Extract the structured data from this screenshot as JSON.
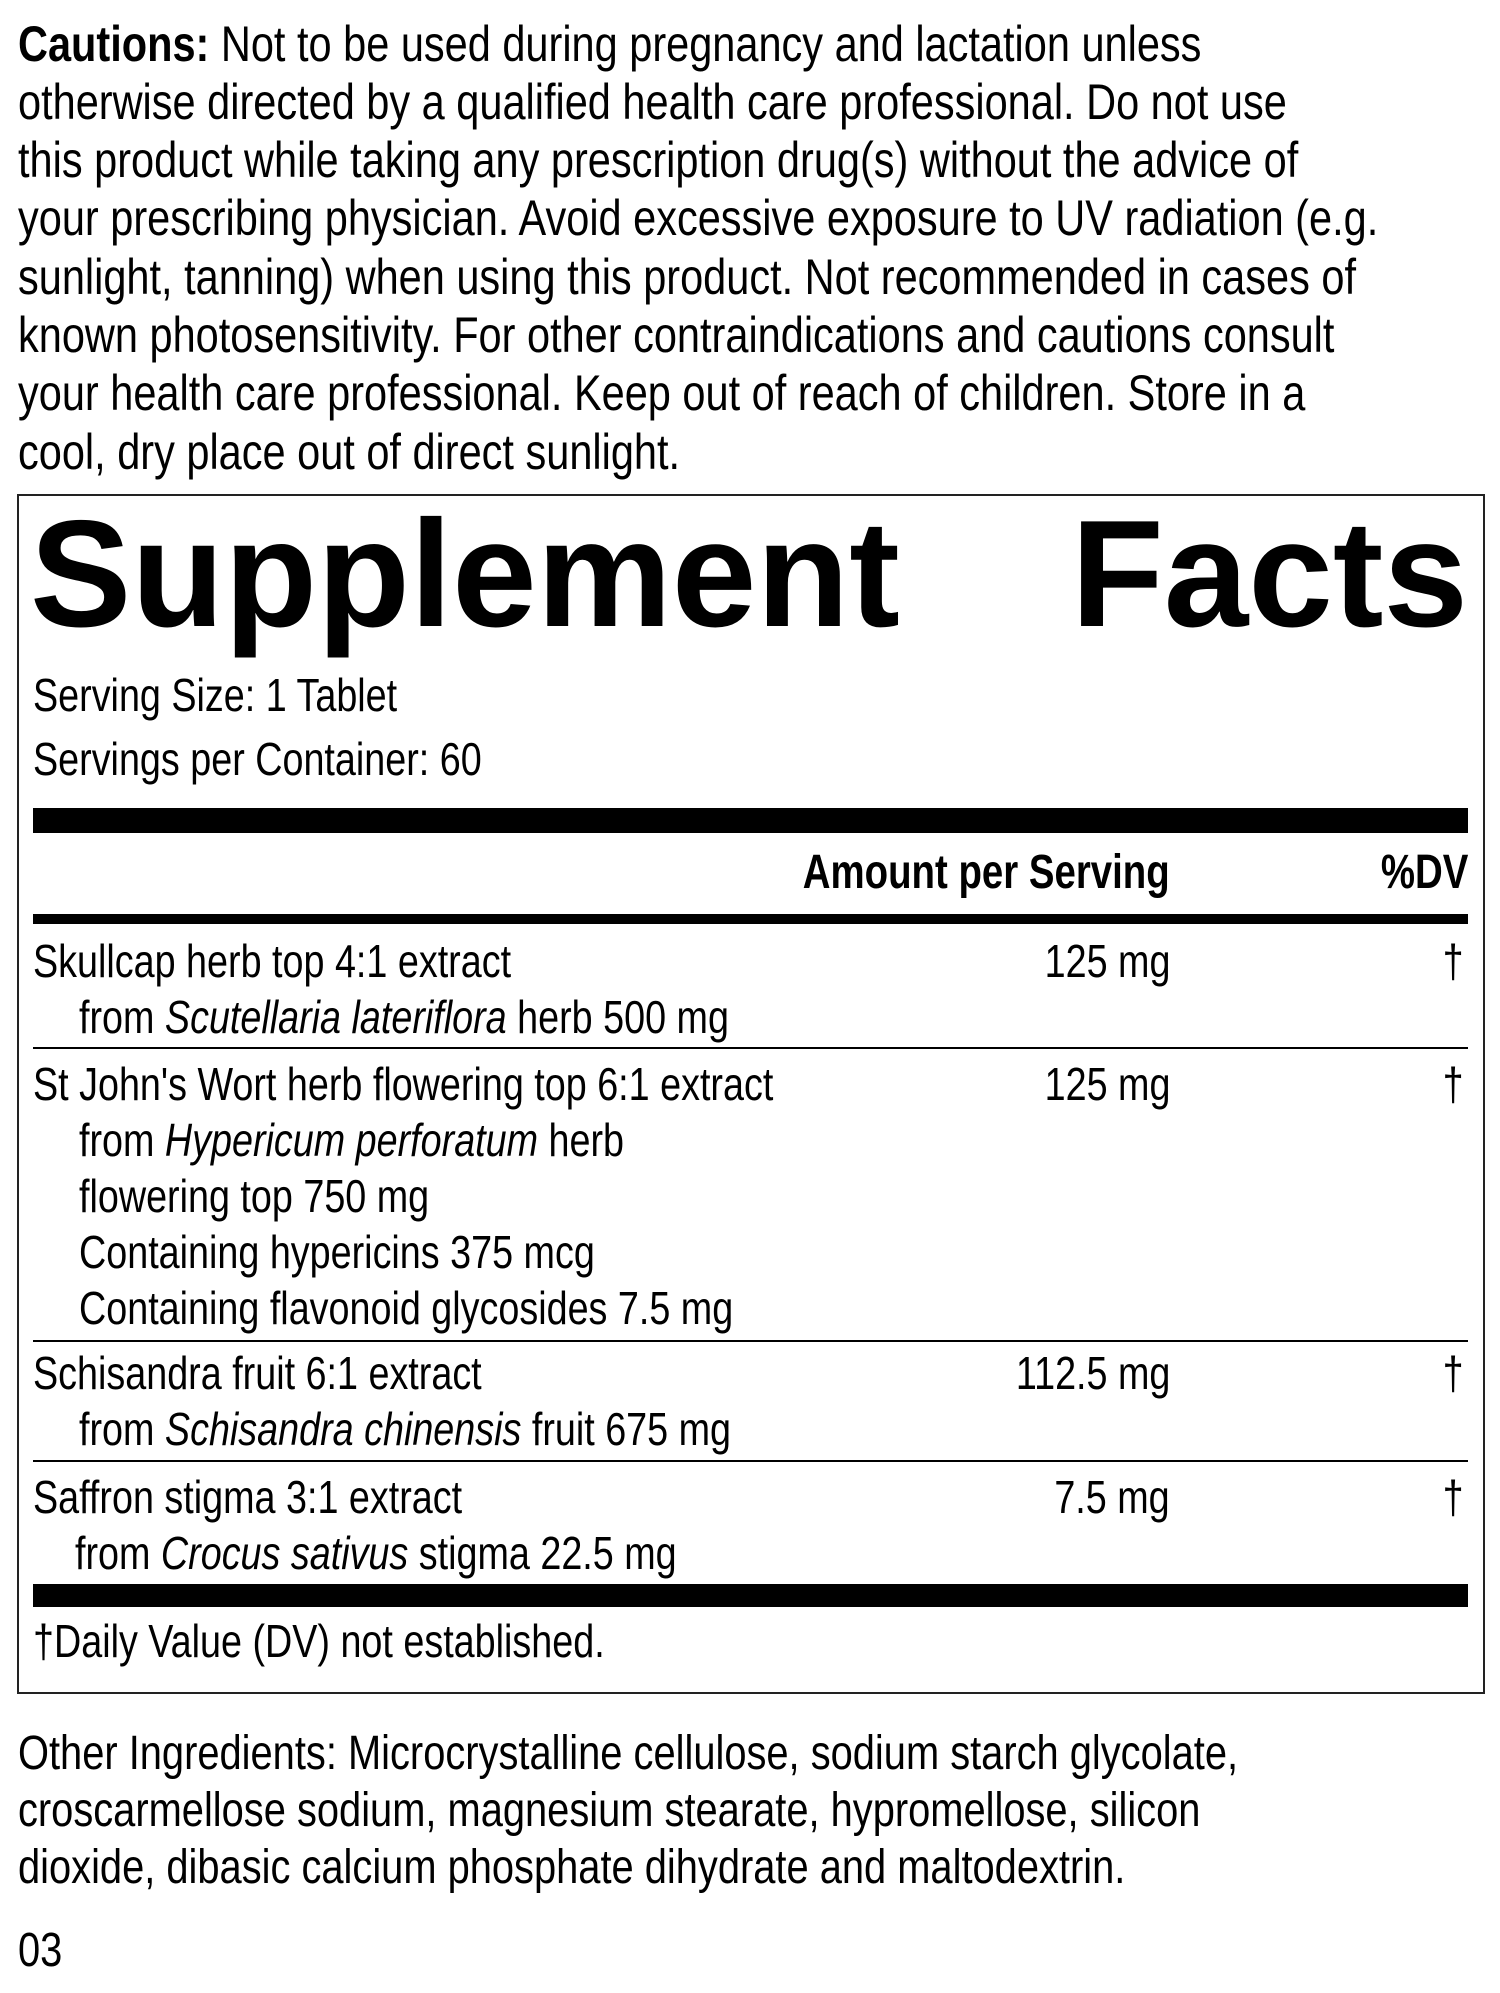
{
  "cautions": {
    "label": "Cautions:",
    "lines": [
      " Not to be used during pregnancy and lactation unless",
      "otherwise directed by a qualified health care professional. Do not use",
      "this product while taking any prescription drug(s) without the advice of",
      "your prescribing physician. Avoid excessive exposure to UV radiation (e.g.",
      "sunlight, tanning) when using this product. Not recommended in cases of",
      "known photosensitivity. For other contraindications and cautions consult",
      "your health care professional. Keep out of reach of children. Store in a",
      "cool, dry place out of direct sunlight."
    ]
  },
  "facts": {
    "title_word1": "Supplement",
    "title_word2": "Facts",
    "serving_size": "Serving Size: 1 Tablet",
    "servings_per_container": "Servings per Container: 60",
    "col_amount": "Amount per Serving",
    "col_dv": "%DV",
    "rows": [
      {
        "name": "Skullcap herb top 4:1 extract",
        "amount": "125 mg",
        "dv": "†",
        "sub": [
          {
            "pre": "from ",
            "ital": "Scutellaria lateriflora",
            "post": " herb 500 mg"
          }
        ]
      },
      {
        "name": "St John's Wort herb flowering top 6:1 extract",
        "amount": "125 mg",
        "dv": "†",
        "sub": [
          {
            "pre": "from ",
            "ital": "Hypericum perforatum",
            "post": " herb"
          },
          {
            "pre": "flowering top 750 mg"
          },
          {
            "pre": "Containing hypericins 375 mcg"
          },
          {
            "pre": "Containing flavonoid glycosides 7.5 mg"
          }
        ]
      },
      {
        "name": "Schisandra fruit 6:1 extract",
        "amount": "112.5 mg",
        "dv": "†",
        "sub": [
          {
            "pre": "from ",
            "ital": "Schisandra chinensis",
            "post": " fruit 675 mg"
          }
        ]
      },
      {
        "name": "Saffron stigma 3:1 extract",
        "amount": "7.5 mg",
        "dv": "†",
        "sub": [
          {
            "pre": "from ",
            "ital": "Crocus sativus",
            "post": " stigma 22.5 mg"
          }
        ]
      }
    ],
    "footnote": "†Daily Value (DV) not established."
  },
  "other_ingredients": {
    "lines": [
      "Other Ingredients: Microcrystalline cellulose, sodium starch glycolate,",
      "croscarmellose sodium, magnesium stearate, hypromellose, silicon",
      "dioxide, dibasic calcium phosphate dihydrate and maltodextrin."
    ]
  },
  "code": "03"
}
